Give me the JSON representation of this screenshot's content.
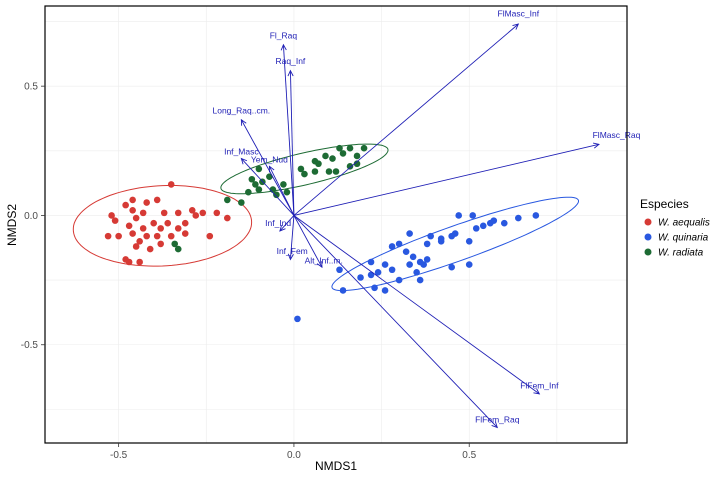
{
  "chart_data": {
    "type": "scatter",
    "xlabel": "NMDS1",
    "ylabel": "NMDS2",
    "xlim": [
      -0.71,
      0.95
    ],
    "ylim": [
      -0.88,
      0.81
    ],
    "xticks": [
      -0.5,
      0.0,
      0.5
    ],
    "yticks": [
      -0.5,
      0.0,
      0.5
    ],
    "xtick_labels": [
      "-0.5",
      "0.0",
      "0.5"
    ],
    "ytick_labels": [
      "-0.5",
      "0.0",
      "0.5"
    ],
    "grid": true,
    "legend": {
      "title": "Especies",
      "placement": "right",
      "entries": [
        "W. aequalis",
        "W. quinaria",
        "W. radiata"
      ]
    },
    "series": [
      {
        "name": "W. aequalis",
        "color": "#d63a35",
        "points": [
          [
            -0.35,
            0.12
          ],
          [
            -0.46,
            0.06
          ],
          [
            -0.42,
            0.05
          ],
          [
            -0.39,
            0.06
          ],
          [
            -0.48,
            0.04
          ],
          [
            -0.52,
            0.0
          ],
          [
            -0.46,
            0.02
          ],
          [
            -0.43,
            0.01
          ],
          [
            -0.37,
            0.01
          ],
          [
            -0.33,
            0.01
          ],
          [
            -0.29,
            0.02
          ],
          [
            -0.26,
            0.01
          ],
          [
            -0.22,
            0.01
          ],
          [
            -0.51,
            -0.02
          ],
          [
            -0.45,
            -0.01
          ],
          [
            -0.4,
            -0.03
          ],
          [
            -0.36,
            -0.03
          ],
          [
            -0.31,
            -0.03
          ],
          [
            -0.28,
            0.0
          ],
          [
            -0.19,
            -0.01
          ],
          [
            -0.47,
            -0.04
          ],
          [
            -0.43,
            -0.05
          ],
          [
            -0.38,
            -0.05
          ],
          [
            -0.33,
            -0.05
          ],
          [
            -0.53,
            -0.08
          ],
          [
            -0.5,
            -0.08
          ],
          [
            -0.46,
            -0.07
          ],
          [
            -0.42,
            -0.08
          ],
          [
            -0.39,
            -0.08
          ],
          [
            -0.35,
            -0.08
          ],
          [
            -0.31,
            -0.07
          ],
          [
            -0.24,
            -0.08
          ],
          [
            -0.44,
            -0.1
          ],
          [
            -0.38,
            -0.11
          ],
          [
            -0.45,
            -0.12
          ],
          [
            -0.41,
            -0.13
          ],
          [
            -0.47,
            -0.18
          ],
          [
            -0.44,
            -0.18
          ],
          [
            -0.48,
            -0.17
          ]
        ]
      },
      {
        "name": "W. quinaria",
        "color": "#2958e0",
        "points": [
          [
            0.51,
            0.0
          ],
          [
            0.47,
            0.0
          ],
          [
            0.64,
            -0.01
          ],
          [
            0.56,
            -0.03
          ],
          [
            0.6,
            -0.03
          ],
          [
            0.54,
            -0.04
          ],
          [
            0.52,
            -0.05
          ],
          [
            0.69,
            0.0
          ],
          [
            0.57,
            -0.02
          ],
          [
            0.33,
            -0.07
          ],
          [
            0.39,
            -0.08
          ],
          [
            0.42,
            -0.09
          ],
          [
            0.45,
            -0.08
          ],
          [
            0.46,
            -0.07
          ],
          [
            0.5,
            -0.1
          ],
          [
            0.3,
            -0.11
          ],
          [
            0.28,
            -0.12
          ],
          [
            0.38,
            -0.11
          ],
          [
            0.42,
            -0.1
          ],
          [
            0.32,
            -0.14
          ],
          [
            0.34,
            -0.16
          ],
          [
            0.38,
            -0.17
          ],
          [
            0.36,
            -0.18
          ],
          [
            0.37,
            -0.19
          ],
          [
            0.33,
            -0.19
          ],
          [
            0.35,
            -0.22
          ],
          [
            0.22,
            -0.18
          ],
          [
            0.26,
            -0.19
          ],
          [
            0.24,
            -0.22
          ],
          [
            0.28,
            -0.21
          ],
          [
            0.22,
            -0.23
          ],
          [
            0.13,
            -0.21
          ],
          [
            0.3,
            -0.25
          ],
          [
            0.36,
            -0.25
          ],
          [
            0.45,
            -0.2
          ],
          [
            0.5,
            -0.19
          ],
          [
            0.19,
            -0.24
          ],
          [
            0.23,
            -0.28
          ],
          [
            0.14,
            -0.29
          ],
          [
            0.26,
            -0.29
          ],
          [
            0.01,
            -0.4
          ]
        ]
      },
      {
        "name": "W. radiata",
        "color": "#1d6b34",
        "points": [
          [
            0.13,
            0.26
          ],
          [
            0.16,
            0.26
          ],
          [
            0.2,
            0.26
          ],
          [
            0.14,
            0.24
          ],
          [
            0.18,
            0.23
          ],
          [
            0.09,
            0.23
          ],
          [
            0.11,
            0.22
          ],
          [
            0.06,
            0.21
          ],
          [
            0.07,
            0.2
          ],
          [
            0.02,
            0.18
          ],
          [
            0.03,
            0.16
          ],
          [
            0.06,
            0.17
          ],
          [
            0.1,
            0.17
          ],
          [
            0.12,
            0.17
          ],
          [
            0.16,
            0.19
          ],
          [
            0.18,
            0.2
          ],
          [
            -0.1,
            0.18
          ],
          [
            -0.07,
            0.15
          ],
          [
            -0.12,
            0.14
          ],
          [
            -0.09,
            0.13
          ],
          [
            -0.1,
            0.1
          ],
          [
            -0.11,
            0.12
          ],
          [
            -0.06,
            0.1
          ],
          [
            -0.03,
            0.12
          ],
          [
            -0.02,
            0.09
          ],
          [
            -0.05,
            0.08
          ],
          [
            -0.13,
            0.09
          ],
          [
            -0.19,
            0.06
          ],
          [
            -0.15,
            0.05
          ],
          [
            -0.34,
            -0.11
          ],
          [
            -0.33,
            -0.13
          ]
        ]
      }
    ],
    "ellipses": [
      {
        "series": "W. aequalis",
        "cx": -0.375,
        "cy": -0.04,
        "rx": 0.255,
        "ry": 0.155,
        "angle_deg": 5
      },
      {
        "series": "W. radiata",
        "cx": 0.03,
        "cy": 0.18,
        "rx": 0.25,
        "ry": 0.06,
        "angle_deg": 18
      },
      {
        "series": "W. quinaria",
        "cx": 0.46,
        "cy": -0.11,
        "rx": 0.39,
        "ry": 0.065,
        "angle_deg": 26
      }
    ],
    "vectors": {
      "color": "#1f1fb5",
      "origin": [
        0.0,
        0.0
      ],
      "items": [
        {
          "label": "FlMasc_Inf",
          "x": 0.64,
          "y": 0.74,
          "label_x": 0.64,
          "label_y": 0.77,
          "anchor": "middle"
        },
        {
          "label": "FlMasc_Raq",
          "x": 0.87,
          "y": 0.275,
          "label_x": 0.92,
          "label_y": 0.3,
          "anchor": "middle"
        },
        {
          "label": "Fl_Raq",
          "x": -0.03,
          "y": 0.66,
          "label_x": -0.03,
          "label_y": 0.685,
          "anchor": "middle"
        },
        {
          "label": "Raq_Inf",
          "x": -0.01,
          "y": 0.56,
          "label_x": -0.01,
          "label_y": 0.585,
          "anchor": "middle"
        },
        {
          "label": "Long_Raq..cm.",
          "x": -0.15,
          "y": 0.37,
          "label_x": -0.15,
          "label_y": 0.395,
          "anchor": "middle"
        },
        {
          "label": "Inf_Masc",
          "x": -0.15,
          "y": 0.22,
          "label_x": -0.15,
          "label_y": 0.235,
          "anchor": "middle"
        },
        {
          "label": "Yem_Nud",
          "x": -0.07,
          "y": 0.19,
          "label_x": -0.07,
          "label_y": 0.205,
          "anchor": "middle"
        },
        {
          "label": "Inf_Ind",
          "x": -0.04,
          "y": -0.06,
          "label_x": -0.045,
          "label_y": -0.04,
          "anchor": "middle"
        },
        {
          "label": "Inf_Fem",
          "x": -0.01,
          "y": -0.17,
          "label_x": -0.005,
          "label_y": -0.15,
          "anchor": "middle"
        },
        {
          "label": "Alt_Inf..m.",
          "x": 0.08,
          "y": -0.2,
          "label_x": 0.085,
          "label_y": -0.185,
          "anchor": "middle"
        },
        {
          "label": "FlFem_Inf",
          "x": 0.7,
          "y": -0.69,
          "label_x": 0.7,
          "label_y": -0.67,
          "anchor": "middle"
        },
        {
          "label": "FlFem_Raq",
          "x": 0.58,
          "y": -0.82,
          "label_x": 0.58,
          "label_y": -0.8,
          "anchor": "middle"
        }
      ]
    }
  }
}
